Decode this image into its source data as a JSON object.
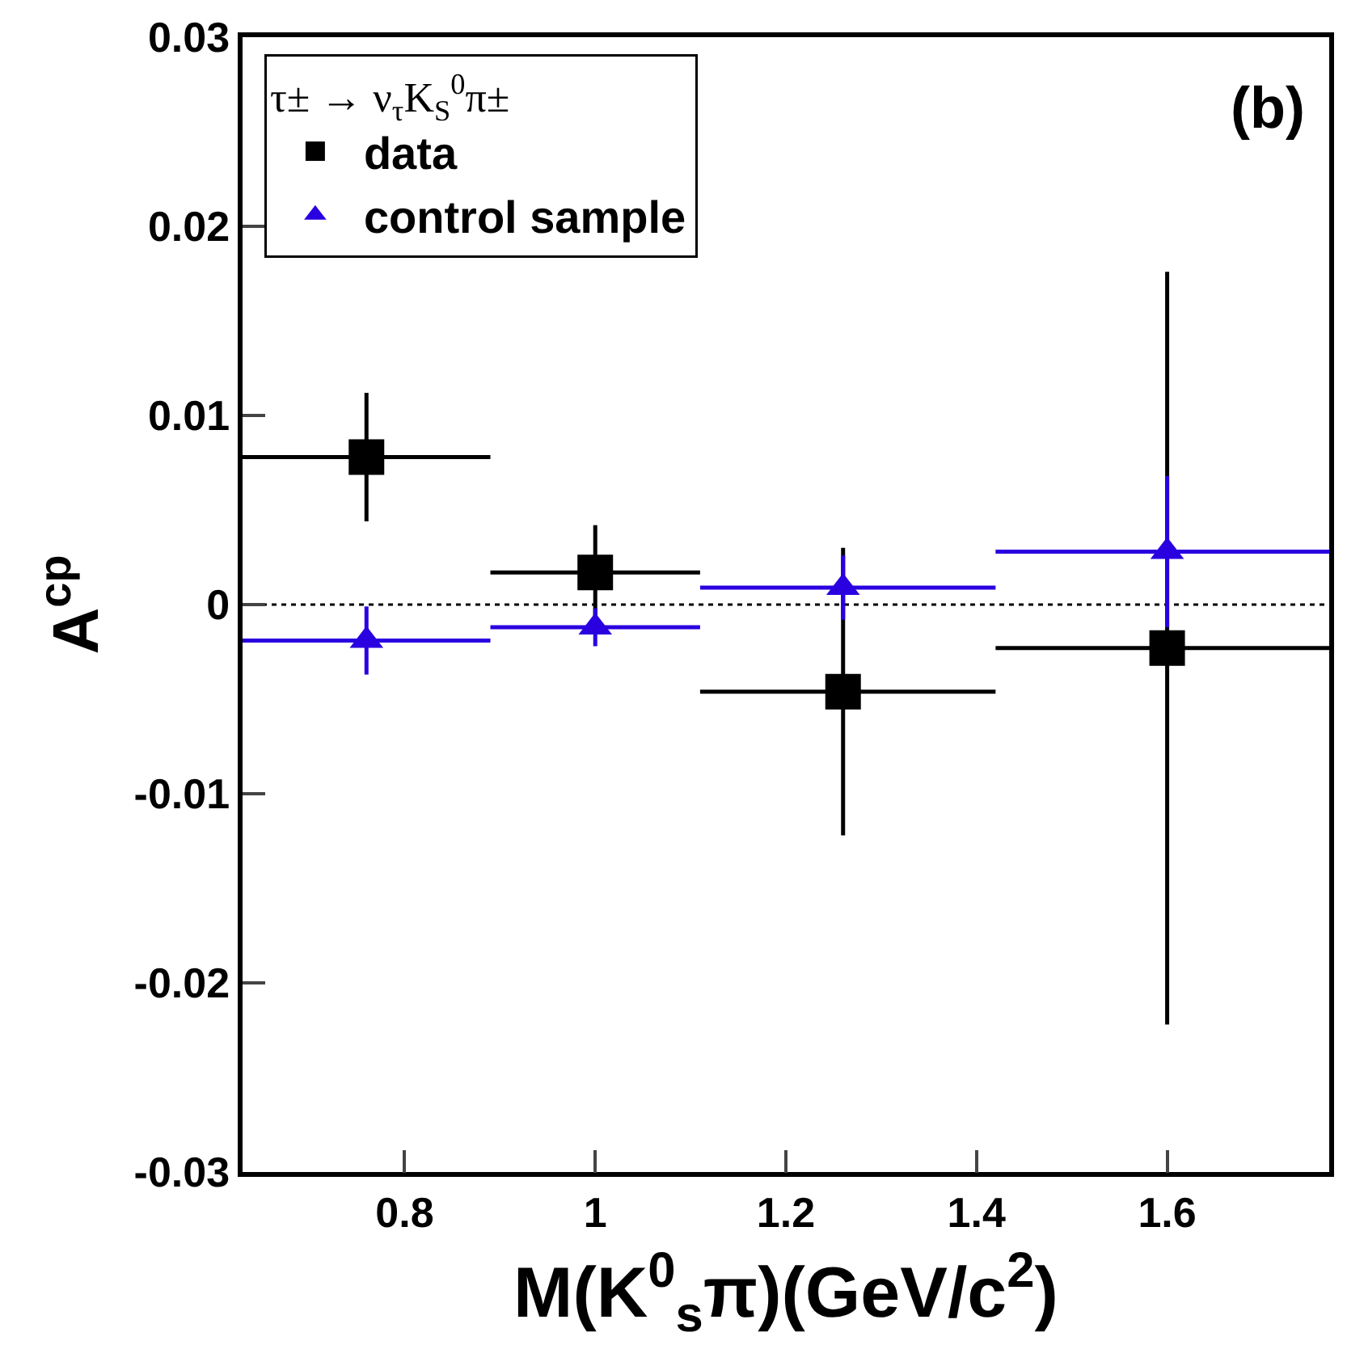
{
  "chart_data": {
    "type": "scatter",
    "xlabel": "M(K$^{0}$$_{s}$π)(GeV/c$^{2}$)",
    "ylabel": "A$^{cp}$",
    "legend_title": "τ± → ν$_{τ}$K$_{S}$$^{0}$π±",
    "annotations": [
      "(b)"
    ],
    "series": [
      {
        "name": "data",
        "color": "#000000",
        "marker": "square",
        "x": [
          0.76,
          1.0,
          1.26,
          1.6
        ],
        "values": [
          0.0078,
          0.0017,
          -0.0046,
          -0.0023
        ],
        "errors": [
          0.0034,
          0.0025,
          0.0076,
          0.0199
        ],
        "xerrors": [
          [
            0.63,
            0.89
          ],
          [
            0.89,
            1.11
          ],
          [
            1.11,
            1.42
          ],
          [
            1.42,
            1.77
          ]
        ]
      },
      {
        "name": "control sample",
        "color": "#2a00e0",
        "marker": "triangle",
        "x": [
          0.76,
          1.0,
          1.26,
          1.6
        ],
        "values": [
          -0.0019,
          -0.0012,
          0.0009,
          0.0028
        ],
        "errors": [
          0.0018,
          0.001,
          0.0017,
          0.004
        ],
        "xerrors": [
          [
            0.63,
            0.89
          ],
          [
            0.89,
            1.11
          ],
          [
            1.11,
            1.42
          ],
          [
            1.42,
            1.77
          ]
        ]
      }
    ],
    "xlim": [
      0.63,
      1.77
    ],
    "xticks": [
      0.8,
      1,
      1.2,
      1.4,
      1.6
    ],
    "ylim": [
      -0.03,
      0.03
    ],
    "yticks": [
      -0.03,
      -0.02,
      -0.01,
      0,
      0.01,
      0.02,
      0.03
    ],
    "ref_lines": [
      {
        "axis": "y",
        "value": 0,
        "color": "#000000",
        "line_style": "dotted"
      }
    ],
    "grid": false,
    "legend": "top left"
  }
}
